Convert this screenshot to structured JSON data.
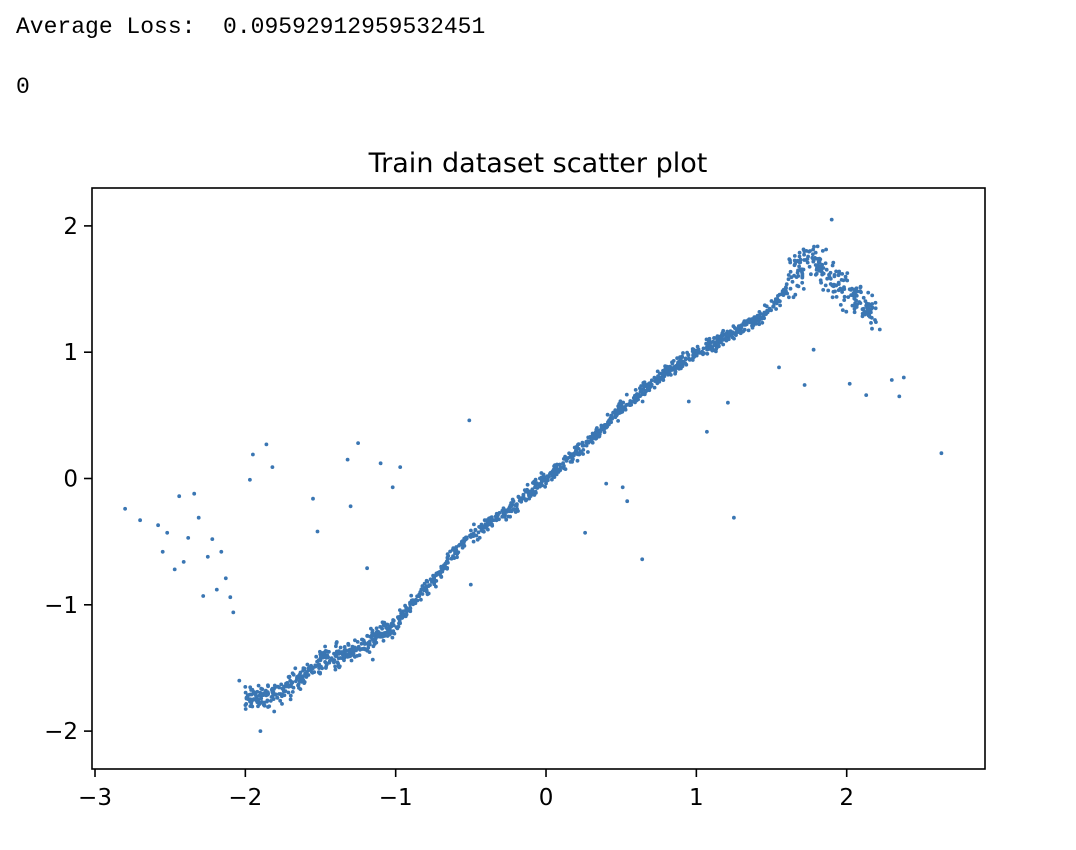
{
  "output": {
    "loss_label": "Average Loss:",
    "loss_value": "0.09592912959532451",
    "count_line": "0"
  },
  "chart_data": {
    "type": "scatter",
    "title": "Train dataset scatter plot",
    "xlabel": "",
    "ylabel": "",
    "xlim": [
      -3.02,
      2.92
    ],
    "ylim": [
      -2.3,
      2.3
    ],
    "xticks": [
      -3,
      -2,
      -1,
      0,
      1,
      2
    ],
    "yticks": [
      -2,
      -1,
      0,
      1,
      2
    ],
    "grid": false,
    "marker_color": "#3a76b3",
    "main_trend_approx": [
      [
        -2.0,
        -1.75
      ],
      [
        -1.75,
        -1.7
      ],
      [
        -1.5,
        -1.45
      ],
      [
        -1.25,
        -1.35
      ],
      [
        -1.0,
        -1.15
      ],
      [
        -0.75,
        -0.8
      ],
      [
        -0.5,
        -0.45
      ],
      [
        -0.25,
        -0.25
      ],
      [
        0.0,
        0.0
      ],
      [
        0.25,
        0.25
      ],
      [
        0.5,
        0.55
      ],
      [
        0.75,
        0.8
      ],
      [
        1.0,
        1.0
      ],
      [
        1.25,
        1.15
      ],
      [
        1.5,
        1.35
      ],
      [
        1.75,
        1.75
      ],
      [
        2.0,
        1.5
      ],
      [
        2.2,
        1.3
      ]
    ],
    "points": [
      [
        -2.8,
        -0.24
      ],
      [
        -2.7,
        -0.33
      ],
      [
        -2.58,
        -0.37
      ],
      [
        -2.55,
        -0.58
      ],
      [
        -2.52,
        -0.43
      ],
      [
        -2.47,
        -0.72
      ],
      [
        -2.44,
        -0.14
      ],
      [
        -2.41,
        -0.66
      ],
      [
        -2.38,
        -0.47
      ],
      [
        -2.34,
        -0.12
      ],
      [
        -2.31,
        -0.31
      ],
      [
        -2.28,
        -0.93
      ],
      [
        -2.25,
        -0.62
      ],
      [
        -2.22,
        -0.48
      ],
      [
        -2.19,
        -0.88
      ],
      [
        -2.16,
        -0.58
      ],
      [
        -2.13,
        -0.79
      ],
      [
        -2.1,
        -0.94
      ],
      [
        -2.08,
        -1.06
      ],
      [
        -2.04,
        -1.6
      ],
      [
        -2.0,
        -1.65
      ],
      [
        -1.97,
        -0.01
      ],
      [
        -1.95,
        0.19
      ],
      [
        -1.9,
        -2.0
      ],
      [
        -1.86,
        0.27
      ],
      [
        -1.82,
        0.09
      ],
      [
        -1.55,
        -0.16
      ],
      [
        -1.52,
        -0.42
      ],
      [
        -1.32,
        0.15
      ],
      [
        -1.3,
        -0.22
      ],
      [
        -1.25,
        0.28
      ],
      [
        -1.19,
        -0.71
      ],
      [
        -1.1,
        0.12
      ],
      [
        -1.02,
        -0.07
      ],
      [
        -0.97,
        0.09
      ],
      [
        -0.51,
        0.46
      ],
      [
        -0.5,
        -0.84
      ],
      [
        0.26,
        -0.43
      ],
      [
        0.4,
        -0.04
      ],
      [
        0.51,
        -0.07
      ],
      [
        0.54,
        -0.18
      ],
      [
        0.64,
        -0.64
      ],
      [
        0.95,
        0.61
      ],
      [
        1.07,
        0.37
      ],
      [
        1.21,
        0.6
      ],
      [
        1.25,
        -0.31
      ],
      [
        1.55,
        0.88
      ],
      [
        1.72,
        0.74
      ],
      [
        1.78,
        1.02
      ],
      [
        1.83,
        1.55
      ],
      [
        1.9,
        2.05
      ],
      [
        1.97,
        1.62
      ],
      [
        2.02,
        0.75
      ],
      [
        2.07,
        1.38
      ],
      [
        2.13,
        0.66
      ],
      [
        2.17,
        1.45
      ],
      [
        2.22,
        1.18
      ],
      [
        2.3,
        0.78
      ],
      [
        2.35,
        0.65
      ],
      [
        2.38,
        0.8
      ],
      [
        2.63,
        0.2
      ]
    ]
  }
}
